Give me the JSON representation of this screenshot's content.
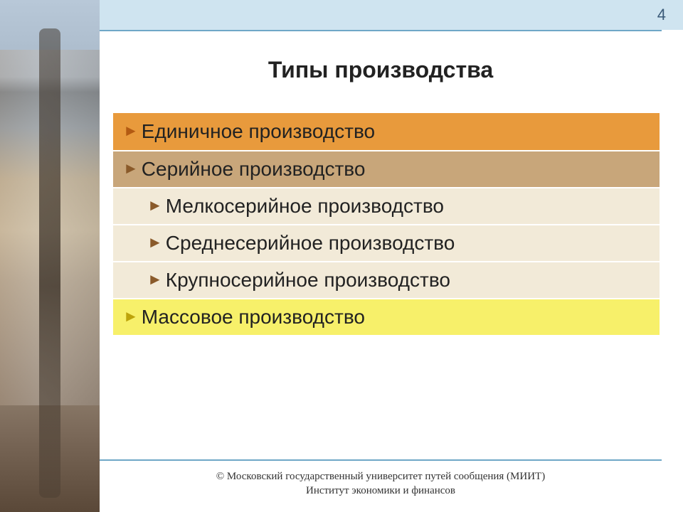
{
  "page_number": "4",
  "title": "Типы производства",
  "top_band_color": "#cfe4f0",
  "rule_color": "#6fa7c7",
  "rows": [
    {
      "label": "Единичное производство",
      "bg": "#e89a3c",
      "bullet_color": "#b35a12",
      "indent": false
    },
    {
      "label": "Серийное производство",
      "bg": "#c8a67a",
      "bullet_color": "#8a5a2a",
      "indent": false
    },
    {
      "label": "Мелкосерийное производство",
      "bg": "#f2ead8",
      "bullet_color": "#8a5a2a",
      "indent": true
    },
    {
      "label": "Среднесерийное производство",
      "bg": "#f2ead8",
      "bullet_color": "#8a5a2a",
      "indent": true
    },
    {
      "label": "Крупносерийное производство",
      "bg": "#f2ead8",
      "bullet_color": "#8a5a2a",
      "indent": true
    },
    {
      "label": "Массовое производство",
      "bg": "#f7f06a",
      "bullet_color": "#bda30a",
      "indent": false
    }
  ],
  "footer_line1": "© Московский государственный университет путей сообщения (МИИТ)",
  "footer_line2": "Институт экономики и финансов"
}
